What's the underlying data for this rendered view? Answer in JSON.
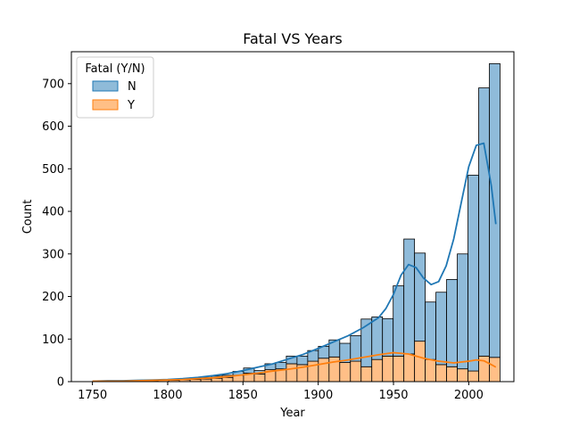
{
  "chart_data": {
    "type": "bar",
    "stacked": true,
    "title": "Fatal VS Years",
    "xlabel": "Year",
    "ylabel": "Count",
    "xlim": [
      1736,
      2030
    ],
    "ylim": [
      0,
      775
    ],
    "xticks": [
      1750,
      1800,
      1850,
      1900,
      1950,
      2000
    ],
    "yticks": [
      0,
      100,
      200,
      300,
      400,
      500,
      600,
      700
    ],
    "bin_width": 7.1,
    "bin_starts": [
      1751.0,
      1758.1,
      1765.2,
      1772.3,
      1779.4,
      1786.5,
      1793.6,
      1800.7,
      1807.8,
      1814.9,
      1822.0,
      1829.1,
      1836.2,
      1843.3,
      1850.4,
      1857.5,
      1864.6,
      1871.7,
      1878.8,
      1885.9,
      1893.0,
      1900.1,
      1907.2,
      1914.3,
      1921.4,
      1928.5,
      1935.6,
      1942.7,
      1949.8,
      1956.9,
      1964.0,
      1971.1,
      1978.2,
      1985.3,
      1992.4,
      1999.5,
      2006.6,
      2013.7
    ],
    "series": [
      {
        "name": "N",
        "color": "#1f77b4",
        "values": [
          0,
          0,
          0,
          0,
          0,
          0,
          1,
          2,
          3,
          4,
          4,
          5,
          5,
          9,
          12,
          8,
          14,
          15,
          18,
          20,
          25,
          28,
          40,
          45,
          60,
          112,
          100,
          88,
          165,
          270,
          207,
          135,
          170,
          205,
          270,
          460,
          630,
          690
        ]
      },
      {
        "name": "Y",
        "color": "#ff7f0e",
        "values": [
          1,
          1,
          1,
          1,
          1,
          2,
          3,
          3,
          4,
          5,
          6,
          8,
          10,
          15,
          20,
          18,
          28,
          30,
          42,
          40,
          48,
          55,
          58,
          45,
          48,
          35,
          52,
          60,
          60,
          65,
          95,
          52,
          40,
          35,
          30,
          25,
          60,
          57
        ]
      }
    ],
    "kde": [
      {
        "name": "N",
        "x": [
          1750,
          1760,
          1770,
          1780,
          1790,
          1800,
          1810,
          1820,
          1830,
          1840,
          1850,
          1860,
          1870,
          1880,
          1890,
          1900,
          1910,
          1920,
          1930,
          1940,
          1945,
          1950,
          1955,
          1960,
          1965,
          1970,
          1975,
          1980,
          1985,
          1990,
          1995,
          2000,
          2005,
          2010,
          2015,
          2018
        ],
        "y": [
          1,
          2,
          2,
          3,
          4,
          5,
          7,
          10,
          14,
          19,
          26,
          34,
          42,
          53,
          64,
          78,
          93,
          108,
          127,
          150,
          172,
          205,
          250,
          275,
          268,
          243,
          228,
          235,
          272,
          335,
          420,
          505,
          555,
          560,
          460,
          370
        ]
      },
      {
        "name": "Y",
        "x": [
          1750,
          1760,
          1770,
          1780,
          1790,
          1800,
          1810,
          1820,
          1830,
          1840,
          1850,
          1860,
          1870,
          1880,
          1890,
          1900,
          1910,
          1920,
          1930,
          1940,
          1950,
          1960,
          1970,
          1980,
          1990,
          2000,
          2005,
          2010,
          2015,
          2018
        ],
        "y": [
          1,
          1,
          1,
          2,
          3,
          4,
          5,
          7,
          9,
          12,
          16,
          20,
          25,
          29,
          34,
          40,
          46,
          51,
          57,
          63,
          68,
          65,
          55,
          48,
          44,
          48,
          51,
          49,
          40,
          34
        ]
      }
    ],
    "legend": {
      "title": "Fatal (Y/N)",
      "placement": "top-left",
      "entries": [
        "N",
        "Y"
      ]
    },
    "grid": false
  }
}
